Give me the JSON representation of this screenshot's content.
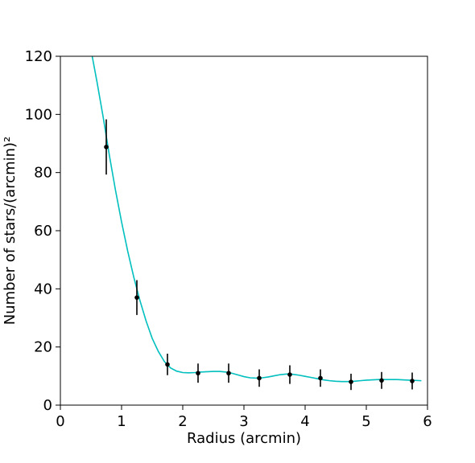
{
  "chart_data": {
    "type": "scatter",
    "xlabel": "Radius (arcmin)",
    "ylabel": "Number of stars/(arcmin)²",
    "xlim": [
      0,
      6
    ],
    "ylim": [
      0,
      120
    ],
    "x_ticks": [
      0,
      1,
      2,
      3,
      4,
      5,
      6
    ],
    "y_ticks": [
      0,
      20,
      40,
      60,
      80,
      100,
      120
    ],
    "x_tick_labels": [
      "0",
      "1",
      "2",
      "3",
      "4",
      "5",
      "6"
    ],
    "y_tick_labels": [
      "0",
      "20",
      "40",
      "60",
      "80",
      "100",
      "120"
    ],
    "grid": false,
    "series": [
      {
        "type": "errorbar",
        "color": "#000000",
        "x": [
          0.75,
          1.25,
          1.75,
          2.25,
          2.75,
          3.25,
          3.75,
          4.25,
          4.75,
          5.25,
          5.75
        ],
        "y": [
          88.8,
          37.0,
          14.0,
          11.0,
          11.0,
          9.3,
          10.5,
          9.3,
          8.0,
          8.5,
          8.3
        ],
        "yerr": [
          9.5,
          6.0,
          3.7,
          3.3,
          3.3,
          3.0,
          3.2,
          3.0,
          2.8,
          2.9,
          2.9
        ]
      },
      {
        "type": "line",
        "color": "#00bfbf",
        "x": [
          0.52,
          0.6,
          0.7,
          0.8,
          0.9,
          1.0,
          1.1,
          1.2,
          1.3,
          1.4,
          1.5,
          1.6,
          1.7,
          1.8,
          1.9,
          2.0,
          2.1,
          2.2,
          2.3,
          2.4,
          2.5,
          2.6,
          2.7,
          2.8,
          2.9,
          3.0,
          3.1,
          3.2,
          3.3,
          3.4,
          3.5,
          3.6,
          3.7,
          3.8,
          3.9,
          4.0,
          4.1,
          4.2,
          4.3,
          4.4,
          4.5,
          4.6,
          4.7,
          4.8,
          4.9,
          5.0,
          5.1,
          5.2,
          5.3,
          5.4,
          5.5,
          5.6,
          5.7,
          5.8,
          5.9
        ],
        "y": [
          120,
          111,
          99,
          86,
          74,
          63,
          53,
          44,
          36,
          29,
          23,
          18.5,
          15,
          12.8,
          11.7,
          11.2,
          11.1,
          11.2,
          11.4,
          11.5,
          11.6,
          11.6,
          11.4,
          11.0,
          10.4,
          9.8,
          9.4,
          9.3,
          9.4,
          9.7,
          10.1,
          10.5,
          10.7,
          10.6,
          10.3,
          9.9,
          9.5,
          9.1,
          8.7,
          8.4,
          8.2,
          8.1,
          8.1,
          8.2,
          8.4,
          8.6,
          8.7,
          8.8,
          8.8,
          8.8,
          8.8,
          8.7,
          8.6,
          8.5,
          8.4
        ]
      }
    ]
  }
}
